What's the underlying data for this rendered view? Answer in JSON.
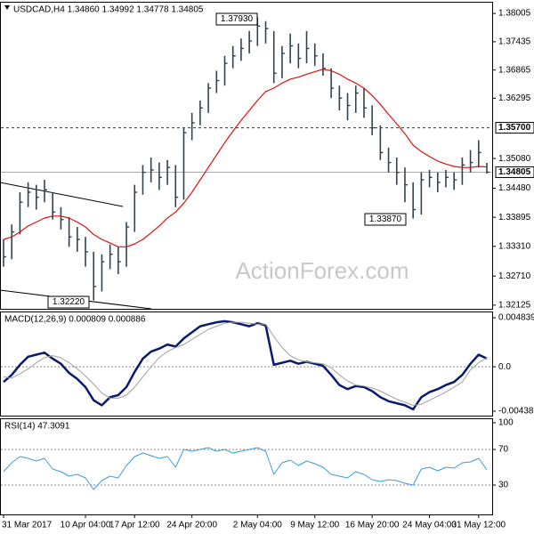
{
  "chart_data": [
    {
      "type": "ohlc",
      "title": "USDCAD,H4  1.34860 1.34992 1.34778 1.34805",
      "watermark": "ActionForex.com",
      "categories": [
        "31 Mar 2017",
        null,
        null,
        null,
        null,
        null,
        null,
        null,
        null,
        null,
        "10 Apr 04:00",
        null,
        null,
        null,
        null,
        null,
        "17 Apr 12:00",
        null,
        null,
        null,
        null,
        null,
        null,
        "24 Apr 20:00",
        null,
        null,
        null,
        null,
        null,
        null,
        null,
        "2 May 04:00",
        null,
        null,
        null,
        null,
        null,
        null,
        "9 May 12:00",
        null,
        null,
        null,
        null,
        null,
        null,
        "16 May 20:00",
        null,
        null,
        null,
        null,
        null,
        null,
        "24 May 04:00",
        null,
        null,
        null,
        null,
        null,
        "31 May 12:00",
        null
      ],
      "color": "#2f4452",
      "high": [
        1.3345,
        1.3375,
        1.344,
        1.346,
        1.3455,
        1.3465,
        1.344,
        1.341,
        1.339,
        1.337,
        1.335,
        1.332,
        1.3315,
        1.3335,
        1.333,
        1.338,
        1.3455,
        1.3495,
        1.351,
        1.35,
        1.3505,
        1.3495,
        1.357,
        1.36,
        1.3625,
        1.366,
        1.3685,
        1.3715,
        1.3735,
        1.375,
        1.3765,
        1.3793,
        1.3785,
        1.3765,
        1.3735,
        1.376,
        1.374,
        1.3765,
        1.374,
        1.372,
        1.369,
        1.3655,
        1.364,
        1.3655,
        1.365,
        1.3615,
        1.3575,
        1.353,
        1.351,
        1.349,
        1.346,
        1.348,
        1.3485,
        1.348,
        1.3485,
        1.348,
        1.351,
        1.3525,
        1.3545,
        1.34992
      ],
      "low": [
        1.329,
        1.3305,
        1.3355,
        1.341,
        1.3405,
        1.342,
        1.3385,
        1.3365,
        1.333,
        1.332,
        1.329,
        1.3222,
        1.324,
        1.3285,
        1.3275,
        1.329,
        1.336,
        1.3435,
        1.346,
        1.3445,
        1.3455,
        1.341,
        1.3425,
        1.3545,
        1.3575,
        1.36,
        1.364,
        1.3655,
        1.369,
        1.3705,
        1.372,
        1.3735,
        1.374,
        1.366,
        1.367,
        1.37,
        1.369,
        1.37,
        1.3695,
        1.3675,
        1.363,
        1.3605,
        1.3585,
        1.36,
        1.359,
        1.3555,
        1.3505,
        1.348,
        1.3455,
        1.342,
        1.3387,
        1.3395,
        1.345,
        1.344,
        1.345,
        1.3445,
        1.3455,
        1.348,
        1.349,
        1.34778
      ],
      "close": [
        1.331,
        1.336,
        1.342,
        1.344,
        1.343,
        1.3445,
        1.34,
        1.3385,
        1.335,
        1.3345,
        1.332,
        1.325,
        1.33,
        1.3315,
        1.33,
        1.337,
        1.344,
        1.348,
        1.3485,
        1.347,
        1.349,
        1.343,
        1.356,
        1.358,
        1.361,
        1.365,
        1.3665,
        1.37,
        1.3715,
        1.373,
        1.3745,
        1.3775,
        1.377,
        1.368,
        1.372,
        1.3735,
        1.371,
        1.373,
        1.3715,
        1.369,
        1.365,
        1.363,
        1.3615,
        1.364,
        1.361,
        1.357,
        1.352,
        1.35,
        1.348,
        1.3455,
        1.3405,
        1.3465,
        1.347,
        1.346,
        1.347,
        1.3465,
        1.3495,
        1.35,
        1.352,
        1.34805
      ],
      "series": [
        {
          "color": "#e01010",
          "values": [
            1.3345,
            1.335,
            1.336,
            1.3372,
            1.338,
            1.3388,
            1.3392,
            1.3392,
            1.3388,
            1.338,
            1.337,
            1.3355,
            1.3345,
            1.3338,
            1.333,
            1.333,
            1.3336,
            1.3345,
            1.3358,
            1.3372,
            1.3388,
            1.34,
            1.3418,
            1.344,
            1.3465,
            1.349,
            1.3515,
            1.354,
            1.3563,
            1.3585,
            1.3605,
            1.3625,
            1.3643,
            1.365,
            1.366,
            1.3668,
            1.3672,
            1.3678,
            1.3683,
            1.3688,
            1.3685,
            1.3678,
            1.3668,
            1.366,
            1.365,
            1.3635,
            1.3617,
            1.3597,
            1.3578,
            1.3558,
            1.3535,
            1.3522,
            1.3512,
            1.3503,
            1.3497,
            1.3492,
            1.349,
            1.349,
            1.3492,
            1.3491
          ]
        }
      ],
      "ylim": [
        1.3205,
        1.3824
      ],
      "yticks": [
        1.38005,
        1.37435,
        1.36865,
        1.36295,
        {
          "value": 1.3508,
          "label": "1.35080"
        },
        {
          "value": 1.3448,
          "label": "1.34480"
        },
        1.33895,
        {
          "value": 1.3331,
          "label": "1.33310"
        },
        {
          "value": 1.3271,
          "label": "1.32710"
        },
        1.32125
      ],
      "levels": [
        {
          "value": 1.357,
          "label": "1.35700",
          "style": "dashed"
        },
        {
          "value": 1.34805,
          "label": "1.34805",
          "style": "solid"
        }
      ],
      "annotations": [
        "1.37930",
        "1.33870",
        "1.32220"
      ]
    },
    {
      "type": "line",
      "title": "MACD(12,26,9) 0.000809 0.000886",
      "series": [
        {
          "color": "#0a1a6e",
          "width": 2.5,
          "values": [
            -0.0015,
            -0.0008,
            0.0002,
            0.001,
            0.0012,
            0.0014,
            0.0008,
            0.0003,
            -0.0006,
            -0.0012,
            -0.002,
            -0.0033,
            -0.0038,
            -0.003,
            -0.0028,
            -0.002,
            -0.0005,
            0.0008,
            0.0015,
            0.0018,
            0.0022,
            0.002,
            0.0028,
            0.0034,
            0.004,
            0.0042,
            0.0044,
            0.0045,
            0.0044,
            0.0042,
            0.004,
            0.0043,
            0.0041,
            0.0002,
            0.0004,
            0.0006,
            0.0003,
            0.0005,
            0.0003,
            0.0001,
            -0.0008,
            -0.0018,
            -0.0022,
            -0.0019,
            -0.002,
            -0.0024,
            -0.003,
            -0.0034,
            -0.0036,
            -0.0038,
            -0.0042,
            -0.003,
            -0.0025,
            -0.0022,
            -0.0018,
            -0.0015,
            -0.0008,
            0.0003,
            0.0012,
            0.000809
          ]
        },
        {
          "color": "#a0a0a0",
          "width": 1,
          "values": [
            -0.001,
            -0.0011,
            -0.0007,
            -0.0002,
            0.0004,
            0.0009,
            0.0011,
            0.0009,
            0.0004,
            -0.0002,
            -0.0009,
            -0.0017,
            -0.0026,
            -0.0031,
            -0.0031,
            -0.0028,
            -0.002,
            -0.001,
            0,
            0.0009,
            0.0015,
            0.0019,
            0.0022,
            0.0027,
            0.0032,
            0.0037,
            0.004,
            0.0043,
            0.0044,
            0.0044,
            0.0043,
            0.0042,
            0.0042,
            0.003,
            0.0019,
            0.0011,
            0.0007,
            0.0005,
            0.0004,
            0.0003,
            -0.0001,
            -0.0008,
            -0.0014,
            -0.0018,
            -0.0019,
            -0.0021,
            -0.0024,
            -0.0028,
            -0.0032,
            -0.0035,
            -0.0038,
            -0.0037,
            -0.0033,
            -0.0029,
            -0.0025,
            -0.002,
            -0.0015,
            -0.0003,
            0.0004,
            0.000886
          ]
        }
      ],
      "ylim": [
        -0.00482,
        0.00546
      ],
      "yticks": [
        0.004839,
        {
          "value": 0,
          "label": "0.0"
        },
        -0.004381
      ],
      "dashed": [
        {
          "value": 0
        }
      ]
    },
    {
      "type": "line",
      "title": "RSI(14) 47.3091",
      "series": [
        {
          "color": "#3d9be0",
          "width": 1,
          "values": [
            45,
            55,
            62,
            60,
            57,
            60,
            48,
            45,
            40,
            42,
            38,
            25,
            35,
            40,
            38,
            52,
            62,
            66,
            63,
            60,
            62,
            50,
            70,
            68,
            70,
            72,
            68,
            70,
            66,
            68,
            70,
            72,
            68,
            42,
            55,
            58,
            52,
            57,
            54,
            50,
            42,
            40,
            38,
            45,
            42,
            36,
            34,
            36,
            35,
            32,
            30,
            48,
            50,
            46,
            50,
            49,
            55,
            56,
            60,
            47.3091
          ]
        }
      ],
      "ylim": [
        -3,
        105
      ],
      "yticks": [
        100,
        70,
        30
      ],
      "dashed": [
        {
          "value": 70
        },
        {
          "value": 30
        }
      ]
    }
  ]
}
